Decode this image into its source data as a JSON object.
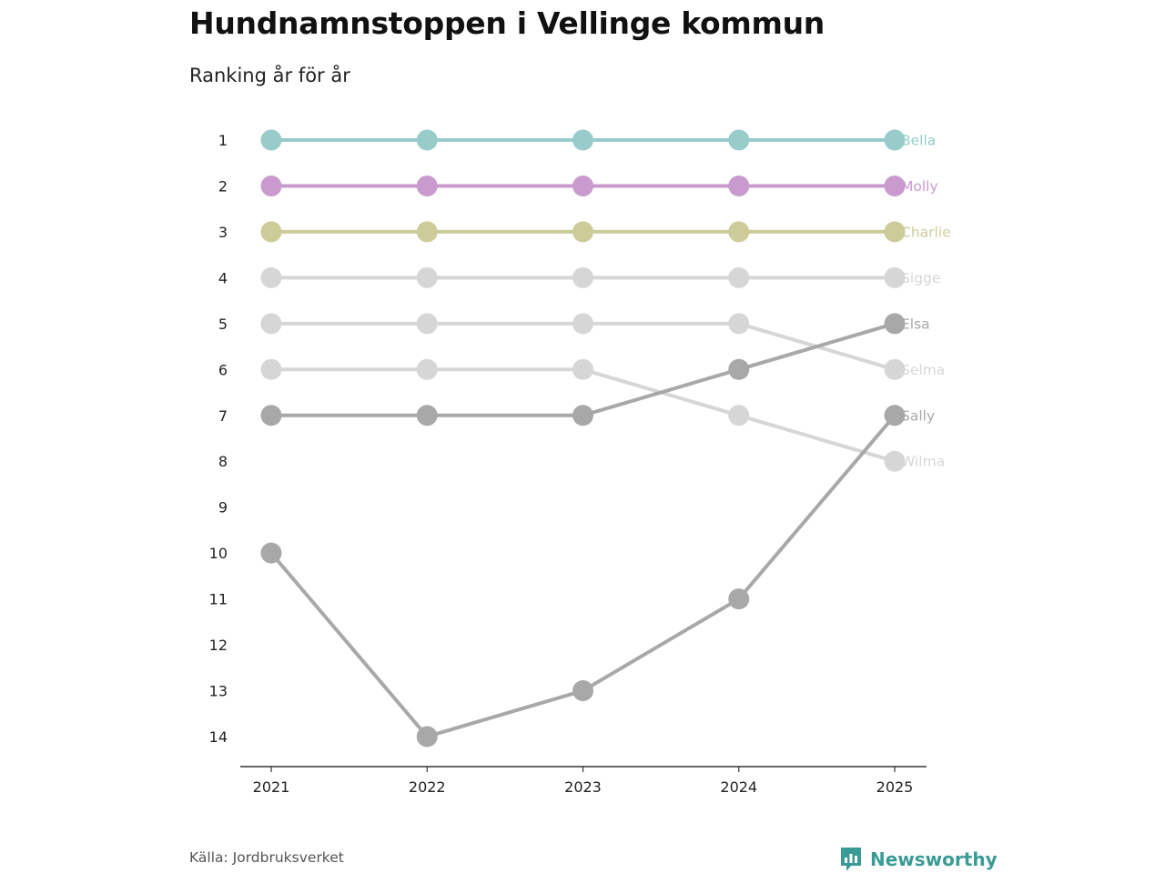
{
  "title": "Hundnamnstoppen i Vellinge kommun",
  "subtitle": "Ranking år för år",
  "source": "Källa: Jordbruksverket",
  "brand": {
    "name": "Newsworthy",
    "icon": "bar-chart-icon",
    "color": "#3a9b96"
  },
  "chart_data": {
    "type": "line",
    "chart_kind": "bump",
    "title": "Hundnamnstoppen i Vellinge kommun",
    "subtitle": "Ranking år för år",
    "xlabel": "",
    "ylabel": "",
    "x": [
      "2021",
      "2022",
      "2023",
      "2024",
      "2025"
    ],
    "y_ticks": [
      1,
      2,
      3,
      4,
      5,
      6,
      7,
      8,
      9,
      10,
      11,
      12,
      13,
      14
    ],
    "ylim": [
      1,
      14
    ],
    "y_inverted": true,
    "grid": false,
    "legend": "direct labels at right end of lines",
    "series": [
      {
        "name": "Bella",
        "color": "#98cccb",
        "values": [
          1,
          1,
          1,
          1,
          1
        ]
      },
      {
        "name": "Molly",
        "color": "#c99ace",
        "values": [
          2,
          2,
          2,
          2,
          2
        ]
      },
      {
        "name": "Charlie",
        "color": "#cccc99",
        "values": [
          3,
          3,
          3,
          3,
          3
        ]
      },
      {
        "name": "Sigge",
        "color": "#d6d6d6",
        "values": [
          4,
          4,
          4,
          4,
          4
        ]
      },
      {
        "name": "Selma",
        "color": "#d6d6d6",
        "values": [
          5,
          5,
          5,
          5,
          6
        ]
      },
      {
        "name": "Wilma",
        "color": "#d6d6d6",
        "values": [
          6,
          6,
          6,
          7,
          8
        ]
      },
      {
        "name": "Elsa",
        "color": "#a8a8a8",
        "values": [
          7,
          7,
          7,
          6,
          5
        ]
      },
      {
        "name": "Sally",
        "color": "#a8a8a8",
        "values": [
          10,
          14,
          13,
          11,
          7
        ]
      }
    ]
  }
}
